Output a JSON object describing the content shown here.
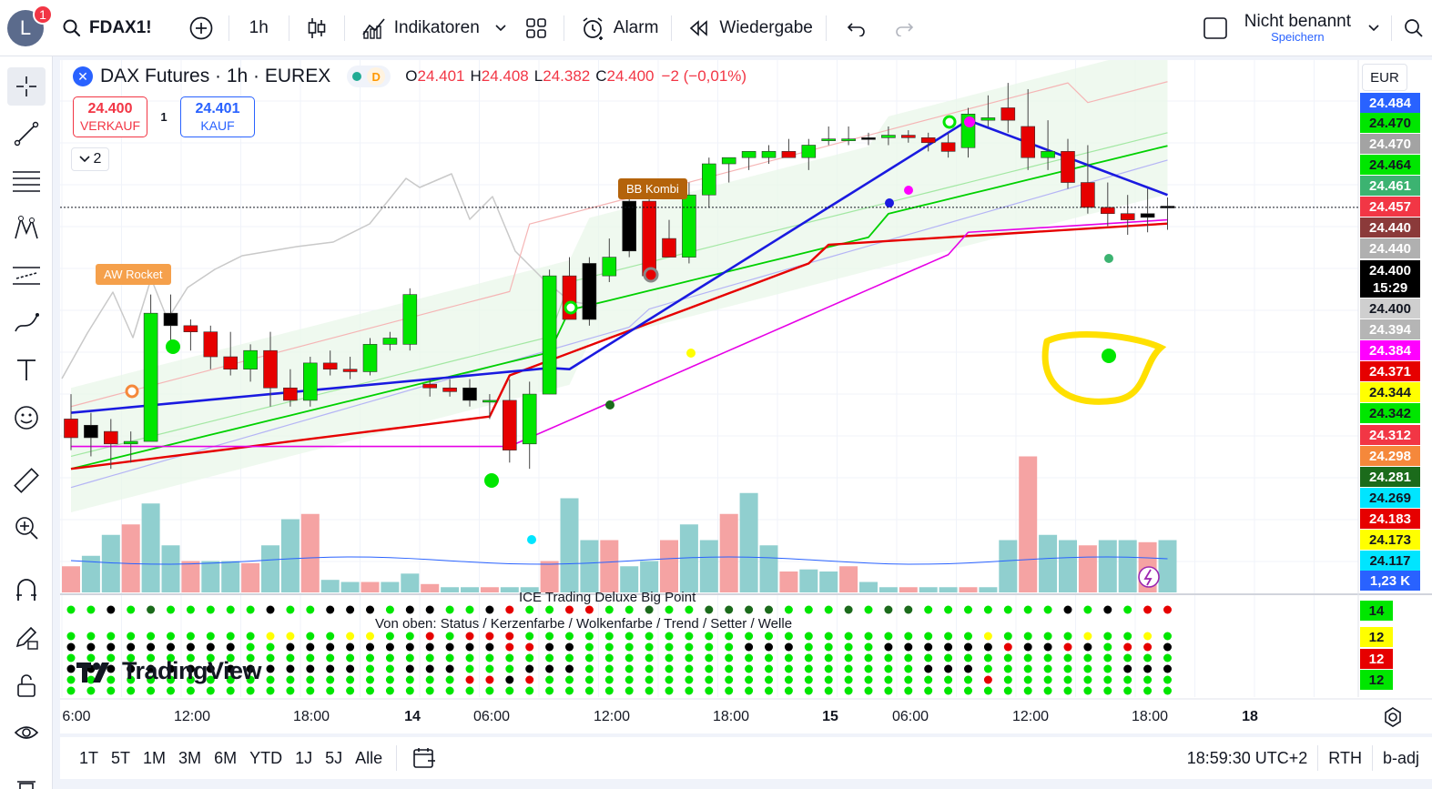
{
  "topbar": {
    "avatar_letter": "L",
    "notification_count": "1",
    "symbol": "FDAX1!",
    "interval": "1h",
    "indicators_label": "Indikatoren",
    "alert_label": "Alarm",
    "replay_label": "Wiedergabe",
    "layout_name": "Nicht benannt",
    "save_label": "Speichern"
  },
  "legend": {
    "symbol_icon": "x-icon",
    "title": "DAX Futures · 1h · EUREX",
    "delay_badge": "D",
    "ohlc": [
      {
        "k": "O",
        "v": "24.401"
      },
      {
        "k": "H",
        "v": "24.408"
      },
      {
        "k": "L",
        "v": "24.382"
      },
      {
        "k": "C",
        "v": "24.400"
      }
    ],
    "change": "−2 (−0,01%)"
  },
  "trade": {
    "sell_price": "24.400",
    "sell_label": "VERKAUF",
    "qty": "1",
    "buy_price": "24.401",
    "buy_label": "KAUF",
    "collapse_count": "2"
  },
  "annotations": {
    "aw_rocket": "AW Rocket",
    "bb_kombi": "BB Kombi"
  },
  "currency": "EUR",
  "price_labels": [
    {
      "text": "24.484",
      "bg": "#2962ff"
    },
    {
      "text": "24.470",
      "bg": "#00e600",
      "fg": "#131722"
    },
    {
      "text": "24.470",
      "bg": "#a3a3a3"
    },
    {
      "text": "24.464",
      "bg": "#00e600",
      "fg": "#131722"
    },
    {
      "text": "24.461",
      "bg": "#3cb371"
    },
    {
      "text": "24.457",
      "bg": "#f23645"
    },
    {
      "text": "24.440",
      "bg": "#8b3a3a"
    },
    {
      "text": "24.440",
      "bg": "#b0b0b0"
    },
    {
      "text": "24.400",
      "bg": "#000000"
    },
    {
      "text": "15:29",
      "bg": "#000000"
    },
    {
      "text": "24.400",
      "bg": "#cfcfcf",
      "fg": "#131722"
    },
    {
      "text": "24.394",
      "bg": "#b5b5b5"
    },
    {
      "text": "24.384",
      "bg": "#ff00ff"
    },
    {
      "text": "24.371",
      "bg": "#e60000"
    },
    {
      "text": "24.344",
      "bg": "#ffff00",
      "fg": "#131722"
    },
    {
      "text": "24.342",
      "bg": "#00e600",
      "fg": "#131722"
    },
    {
      "text": "24.312",
      "bg": "#f23645"
    },
    {
      "text": "24.298",
      "bg": "#f5883b"
    },
    {
      "text": "24.281",
      "bg": "#1b6b1b"
    },
    {
      "text": "24.269",
      "bg": "#00e5ff",
      "fg": "#131722"
    },
    {
      "text": "24.183",
      "bg": "#e60000"
    },
    {
      "text": "24.173",
      "bg": "#ffff00",
      "fg": "#131722"
    },
    {
      "text": "24.117",
      "bg": "#00e5ff",
      "fg": "#131722"
    },
    {
      "text": "1,23 K",
      "bg": "#2962ff"
    }
  ],
  "indicator_pane": {
    "title": "ICE Trading Deluxe Big Point",
    "subtitle": "Von oben: Status / Kerzenfarbe / Wolkenfarbe / Trend / Setter / Welle",
    "scale_labels": [
      {
        "text": "14",
        "bg": "#00e600",
        "fg": "#131722"
      },
      {
        "text": "12",
        "bg": "#ffff00",
        "fg": "#131722"
      },
      {
        "text": "12",
        "bg": "#e60000",
        "fg": "#ffffff"
      },
      {
        "text": "12",
        "bg": "#00e600",
        "fg": "#131722"
      }
    ]
  },
  "x_axis": [
    "6:00",
    "12:00",
    "18:00",
    "14",
    "06:00",
    "12:00",
    "18:00",
    "15",
    "06:00",
    "12:00",
    "18:00",
    "18"
  ],
  "brand": "TradingView",
  "bottombar": {
    "ranges": [
      "1T",
      "5T",
      "1M",
      "3M",
      "6M",
      "YTD",
      "1J",
      "5J",
      "Alle"
    ],
    "clock": "18:59:30 UTC+2",
    "session": "RTH",
    "adj": "b-adj"
  },
  "chart_data": {
    "type": "candlestick",
    "symbol": "FDAX1!",
    "interval": "1h",
    "candles": [
      [
        24230,
        24250,
        24205,
        24215
      ],
      [
        24215,
        24235,
        24200,
        24225
      ],
      [
        24220,
        24230,
        24190,
        24210
      ],
      [
        24210,
        24220,
        24195,
        24212
      ],
      [
        24212,
        24330,
        24212,
        24315
      ],
      [
        24315,
        24330,
        24290,
        24305
      ],
      [
        24305,
        24310,
        24285,
        24300
      ],
      [
        24300,
        24305,
        24270,
        24280
      ],
      [
        24280,
        24300,
        24265,
        24270
      ],
      [
        24270,
        24290,
        24260,
        24285
      ],
      [
        24285,
        24300,
        24240,
        24255
      ],
      [
        24255,
        24270,
        24240,
        24245
      ],
      [
        24245,
        24280,
        24240,
        24275
      ],
      [
        24275,
        24285,
        24265,
        24270
      ],
      [
        24270,
        24280,
        24262,
        24268
      ],
      [
        24268,
        24295,
        24265,
        24290
      ],
      [
        24290,
        24300,
        24285,
        24295
      ],
      [
        24290,
        24335,
        24285,
        24330
      ],
      [
        24258,
        24262,
        24248,
        24255
      ],
      [
        24255,
        24262,
        24248,
        24252
      ],
      [
        24255,
        24262,
        24240,
        24245
      ],
      [
        24245,
        24250,
        24230,
        24245
      ],
      [
        24245,
        24262,
        24195,
        24205
      ],
      [
        24210,
        24260,
        24190,
        24250
      ],
      [
        24250,
        24350,
        24250,
        24345
      ],
      [
        24345,
        24360,
        24310,
        24310
      ],
      [
        24310,
        24360,
        24305,
        24355
      ],
      [
        24345,
        24375,
        24340,
        24360
      ],
      [
        24365,
        24410,
        24360,
        24405
      ],
      [
        24405,
        24410,
        24340,
        24345
      ],
      [
        24375,
        24390,
        24360,
        24360
      ],
      [
        24360,
        24420,
        24355,
        24410
      ],
      [
        24410,
        24440,
        24400,
        24435
      ],
      [
        24435,
        24440,
        24420,
        24440
      ],
      [
        24440,
        24445,
        24430,
        24445
      ],
      [
        24440,
        24450,
        24435,
        24445
      ],
      [
        24445,
        24455,
        24440,
        24440
      ],
      [
        24440,
        24455,
        24430,
        24450
      ],
      [
        24455,
        24465,
        24450,
        24455
      ],
      [
        24455,
        24465,
        24450,
        24455
      ],
      [
        24455,
        24460,
        24450,
        24456
      ],
      [
        24456,
        24465,
        24450,
        24458
      ],
      [
        24458,
        24462,
        24452,
        24456
      ],
      [
        24456,
        24460,
        24445,
        24452
      ],
      [
        24452,
        24460,
        24440,
        24445
      ],
      [
        24448,
        24480,
        24440,
        24475
      ],
      [
        24470,
        24490,
        24465,
        24472
      ],
      [
        24480,
        24500,
        24460,
        24470
      ],
      [
        24465,
        24495,
        24430,
        24440
      ],
      [
        24440,
        24470,
        24430,
        24445
      ],
      [
        24445,
        24455,
        24415,
        24420
      ],
      [
        24420,
        24450,
        24395,
        24400
      ],
      [
        24400,
        24420,
        24385,
        24395
      ],
      [
        24395,
        24410,
        24378,
        24390
      ],
      [
        24392,
        24415,
        24380,
        24395
      ],
      [
        24401,
        24408,
        24382,
        24400
      ]
    ]
  }
}
